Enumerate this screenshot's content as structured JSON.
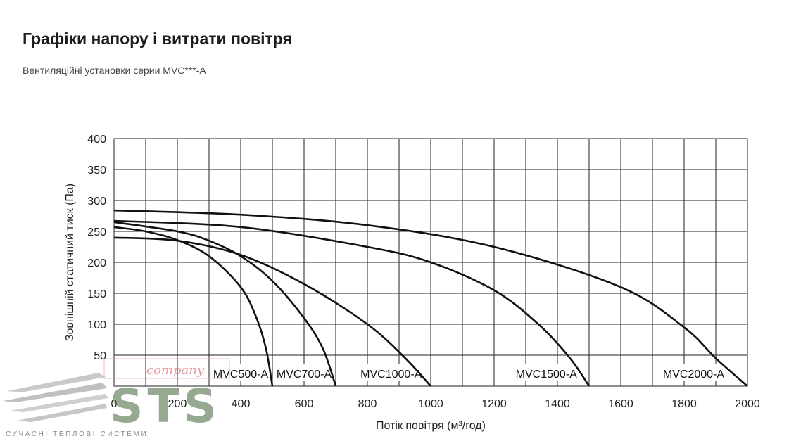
{
  "header": {
    "title": "Графіки напору і витрати повітря",
    "subtitle": "Вентиляційні установки серии MVC***-A"
  },
  "watermark": {
    "logo_text": "STS",
    "script_text": "company",
    "caption": "СУЧАСНІ ТЕПЛОВІ СИСТЕМИ"
  },
  "chart_data": {
    "type": "line",
    "xlabel": "Потік повітря (м³/год)",
    "ylabel": "Зовнішній статичний тиск (Па)",
    "xlim": [
      0,
      2000
    ],
    "ylim": [
      0,
      400
    ],
    "x_ticks": [
      "0",
      "200",
      "400",
      "600",
      "800",
      "1000",
      "1200",
      "1400",
      "1600",
      "1800",
      "2000"
    ],
    "y_ticks": [
      "50",
      "100",
      "150",
      "200",
      "250",
      "300",
      "350",
      "400"
    ],
    "grid": true,
    "legend": "none",
    "series": [
      {
        "name": "MVC500-A",
        "label_x": 400,
        "points": [
          [
            0,
            257
          ],
          [
            100,
            250
          ],
          [
            200,
            236
          ],
          [
            300,
            210
          ],
          [
            400,
            160
          ],
          [
            450,
            110
          ],
          [
            480,
            60
          ],
          [
            500,
            0
          ]
        ]
      },
      {
        "name": "MVC700-A",
        "label_x": 600,
        "points": [
          [
            0,
            265
          ],
          [
            200,
            250
          ],
          [
            300,
            235
          ],
          [
            400,
            210
          ],
          [
            500,
            170
          ],
          [
            600,
            110
          ],
          [
            660,
            60
          ],
          [
            700,
            0
          ]
        ]
      },
      {
        "name": "MVC1000-A",
        "label_x": 875,
        "points": [
          [
            0,
            240
          ],
          [
            200,
            235
          ],
          [
            400,
            212
          ],
          [
            600,
            165
          ],
          [
            800,
            100
          ],
          [
            920,
            45
          ],
          [
            1000,
            0
          ]
        ]
      },
      {
        "name": "MVC1500-A",
        "label_x": 1365,
        "points": [
          [
            0,
            267
          ],
          [
            400,
            257
          ],
          [
            800,
            225
          ],
          [
            1000,
            200
          ],
          [
            1200,
            155
          ],
          [
            1340,
            100
          ],
          [
            1440,
            45
          ],
          [
            1500,
            0
          ]
        ]
      },
      {
        "name": "MVC2000-A",
        "label_x": 1830,
        "points": [
          [
            0,
            284
          ],
          [
            400,
            277
          ],
          [
            800,
            260
          ],
          [
            1200,
            225
          ],
          [
            1600,
            160
          ],
          [
            1800,
            95
          ],
          [
            1900,
            45
          ],
          [
            2000,
            0
          ]
        ]
      }
    ]
  }
}
